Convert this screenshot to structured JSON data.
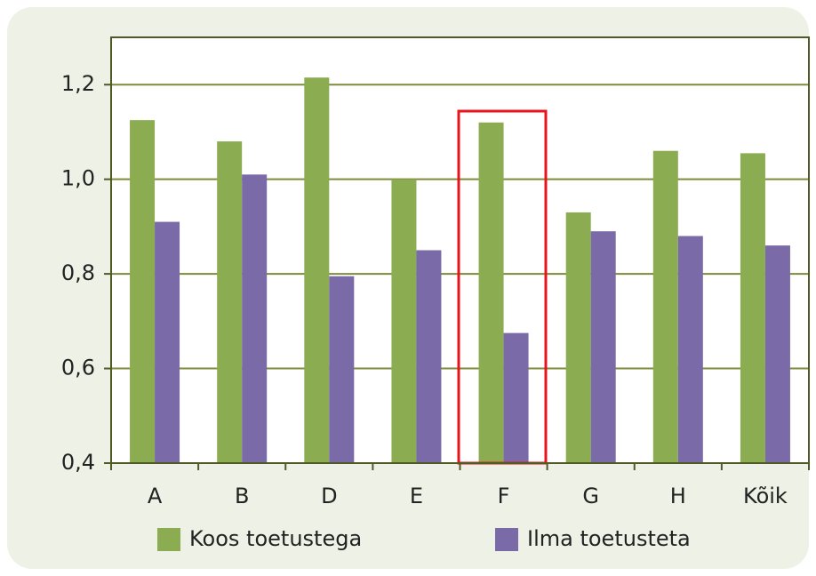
{
  "chart_data": {
    "type": "bar",
    "categories": [
      "A",
      "B",
      "D",
      "E",
      "F",
      "G",
      "H",
      "Kõik"
    ],
    "series": [
      {
        "name": "Koos toetustega",
        "color": "#8cac52",
        "values": [
          1.125,
          1.08,
          1.215,
          1.0,
          1.12,
          0.93,
          1.06,
          1.055
        ]
      },
      {
        "name": "Ilma toetusteta",
        "color": "#7b6aa8",
        "values": [
          0.91,
          1.01,
          0.795,
          0.85,
          0.675,
          0.89,
          0.88,
          0.86
        ]
      }
    ],
    "ylim": [
      0.4,
      1.3
    ],
    "yticks": [
      {
        "value": 0.4,
        "label": "0,4"
      },
      {
        "value": 0.6,
        "label": "0,6"
      },
      {
        "value": 0.8,
        "label": "0,8"
      },
      {
        "value": 1.0,
        "label": "1,0"
      },
      {
        "value": 1.2,
        "label": "1,2"
      }
    ],
    "grid": true,
    "legend": "bottom"
  }
}
